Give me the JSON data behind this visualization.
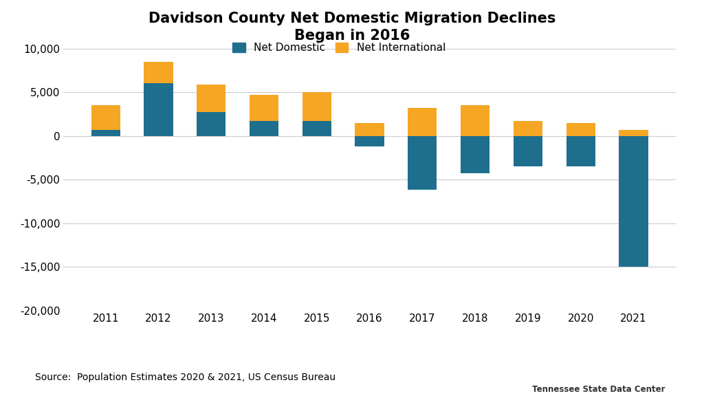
{
  "years": [
    2011,
    2012,
    2013,
    2014,
    2015,
    2016,
    2017,
    2018,
    2019,
    2020,
    2021
  ],
  "net_domestic": [
    700,
    6000,
    2700,
    1700,
    1700,
    -1200,
    -6200,
    -4300,
    -3500,
    -3500,
    -15000
  ],
  "net_international": [
    2800,
    2500,
    3200,
    3000,
    3300,
    1500,
    3200,
    3500,
    1700,
    1500,
    700
  ],
  "domestic_color": "#1e6f8e",
  "international_color": "#f5a623",
  "title_line1": "Davidson County Net Domestic Migration Declines",
  "title_line2": "Began in 2016",
  "legend_domestic": "Net Domestic",
  "legend_international": "Net International",
  "source_text": "Source:  Population Estimates 2020 & 2021, US Census Bureau",
  "ylim": [
    -20000,
    11000
  ],
  "yticks": [
    -20000,
    -15000,
    -10000,
    -5000,
    0,
    5000,
    10000
  ],
  "background_color": "#ffffff",
  "grid_color": "#cccccc",
  "tnsdc_bg_color": "#f5a623",
  "tnsdc_text_color": "#ffffff",
  "tnsdc_sub_color": "#333333"
}
